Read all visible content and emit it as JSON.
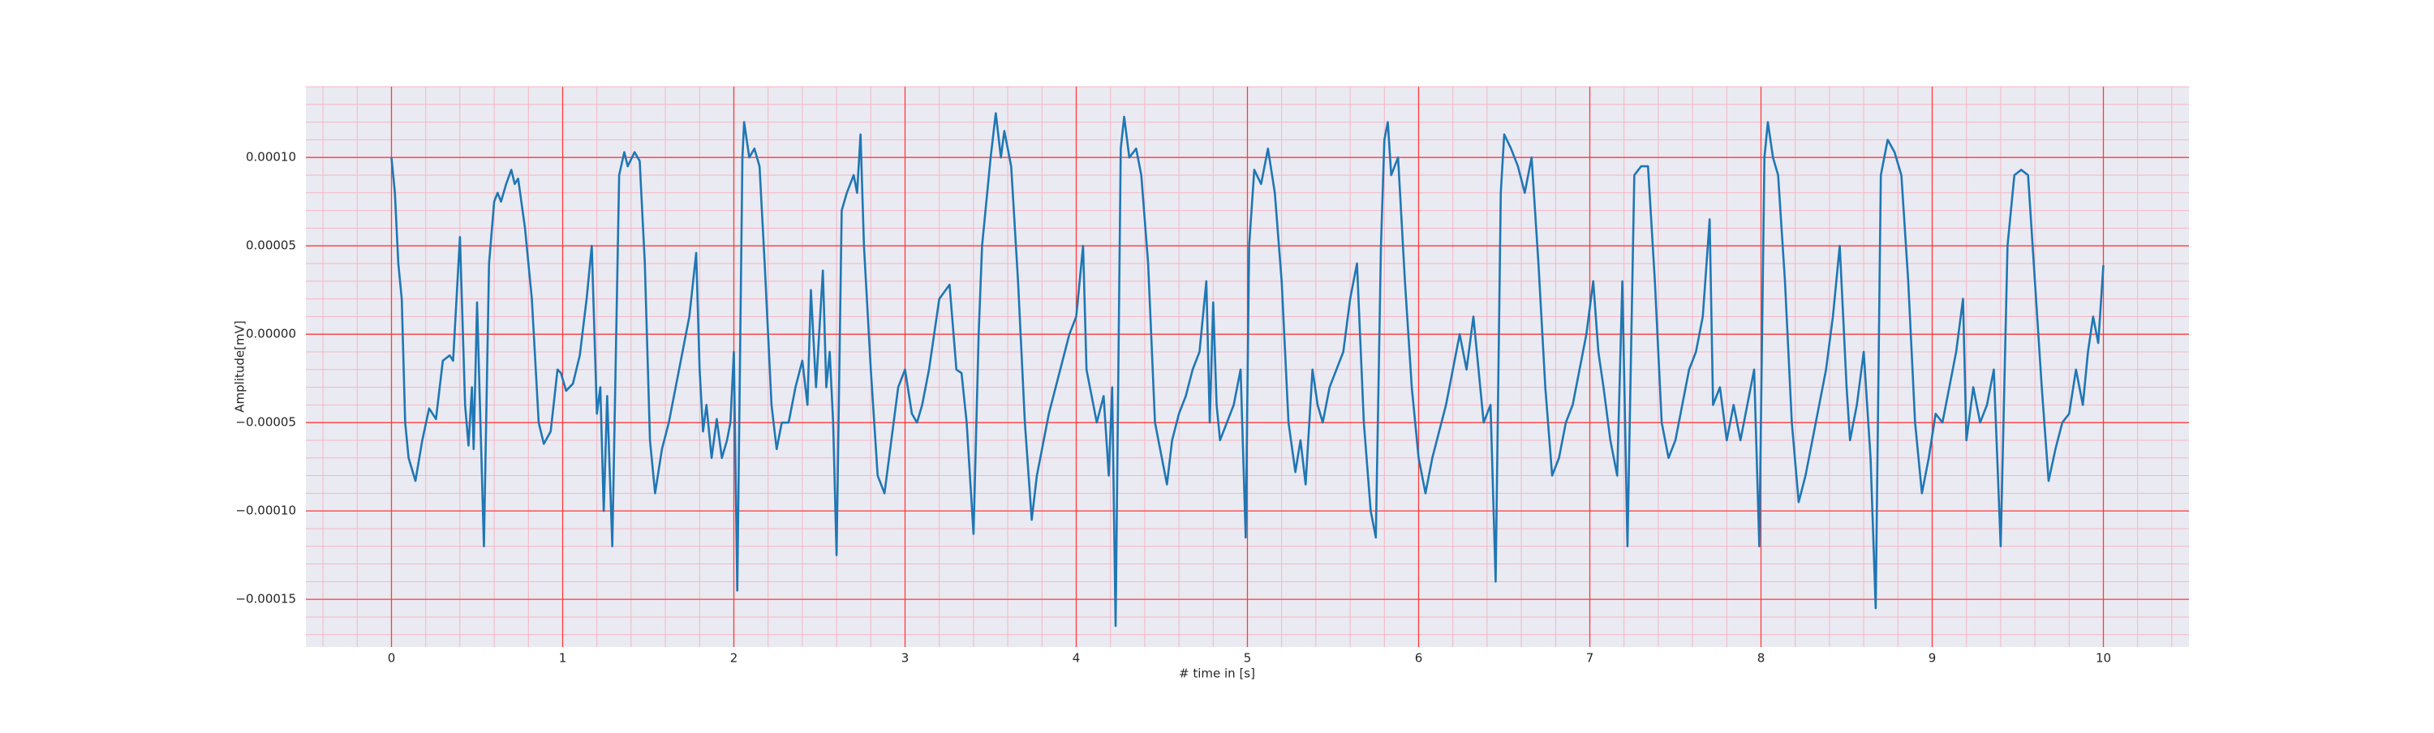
{
  "chart_data": {
    "type": "line",
    "xlabel": "# time in [s]",
    "ylabel": "Amplitude[mV]",
    "color": "#1f77b4",
    "grid": true,
    "minor_grid": true,
    "xlim": [
      -0.5,
      10.5
    ],
    "ylim": [
      -0.000177,
      0.00014
    ],
    "xticks": [
      0,
      1,
      2,
      3,
      4,
      5,
      6,
      7,
      8,
      9,
      10
    ],
    "yticks": [
      {
        "value": -0.00015,
        "label": "−0.00015"
      },
      {
        "value": -0.0001,
        "label": "−0.00010"
      },
      {
        "value": -5e-05,
        "label": "−0.00005"
      },
      {
        "value": 0,
        "label": "0.00000"
      },
      {
        "value": 5e-05,
        "label": "0.00005"
      },
      {
        "value": 0.0001,
        "label": "0.00010"
      }
    ],
    "x": [
      0,
      0.02,
      0.04,
      0.06,
      0.08,
      0.1,
      0.14,
      0.18,
      0.22,
      0.26,
      0.3,
      0.34,
      0.36,
      0.4,
      0.43,
      0.45,
      0.47,
      0.48,
      0.5,
      0.54,
      0.57,
      0.6,
      0.62,
      0.64,
      0.67,
      0.7,
      0.72,
      0.74,
      0.78,
      0.82,
      0.86,
      0.89,
      0.93,
      0.97,
      0.99,
      1.02,
      1.06,
      1.1,
      1.14,
      1.17,
      1.2,
      1.22,
      1.24,
      1.26,
      1.29,
      1.33,
      1.36,
      1.38,
      1.42,
      1.45,
      1.48,
      1.51,
      1.54,
      1.58,
      1.62,
      1.66,
      1.7,
      1.74,
      1.78,
      1.8,
      1.82,
      1.84,
      1.87,
      1.9,
      1.93,
      1.96,
      1.98,
      2.0,
      2.02,
      2.05,
      2.06,
      2.09,
      2.12,
      2.15,
      2.18,
      2.22,
      2.25,
      2.28,
      2.32,
      2.36,
      2.4,
      2.43,
      2.45,
      2.48,
      2.52,
      2.54,
      2.56,
      2.58,
      2.6,
      2.63,
      2.66,
      2.7,
      2.72,
      2.74,
      2.76,
      2.8,
      2.84,
      2.88,
      2.92,
      2.96,
      3.0,
      3.04,
      3.07,
      3.1,
      3.14,
      3.2,
      3.26,
      3.3,
      3.33,
      3.36,
      3.4,
      3.43,
      3.45,
      3.5,
      3.53,
      3.56,
      3.58,
      3.62,
      3.66,
      3.7,
      3.74,
      3.77,
      3.8,
      3.84,
      3.88,
      3.92,
      3.96,
      4.0,
      4.04,
      4.06,
      4.09,
      4.12,
      4.16,
      4.19,
      4.21,
      4.23,
      4.26,
      4.28,
      4.31,
      4.35,
      4.38,
      4.42,
      4.46,
      4.5,
      4.53,
      4.56,
      4.6,
      4.64,
      4.68,
      4.72,
      4.76,
      4.78,
      4.8,
      4.82,
      4.84,
      4.88,
      4.92,
      4.96,
      4.99,
      5.01,
      5.04,
      5.08,
      5.12,
      5.16,
      5.2,
      5.24,
      5.28,
      5.31,
      5.34,
      5.38,
      5.41,
      5.44,
      5.48,
      5.52,
      5.56,
      5.6,
      5.64,
      5.68,
      5.72,
      5.75,
      5.78,
      5.8,
      5.82,
      5.84,
      5.88,
      5.92,
      5.96,
      6.0,
      6.04,
      6.08,
      6.12,
      6.16,
      6.2,
      6.24,
      6.28,
      6.32,
      6.36,
      6.38,
      6.42,
      6.45,
      6.48,
      6.5,
      6.54,
      6.58,
      6.62,
      6.66,
      6.7,
      6.74,
      6.78,
      6.82,
      6.86,
      6.9,
      6.94,
      6.98,
      7.02,
      7.05,
      7.08,
      7.12,
      7.16,
      7.19,
      7.22,
      7.26,
      7.3,
      7.34,
      7.38,
      7.42,
      7.46,
      7.5,
      7.54,
      7.58,
      7.62,
      7.66,
      7.7,
      7.72,
      7.76,
      7.8,
      7.84,
      7.88,
      7.92,
      7.96,
      7.99,
      8.02,
      8.04,
      8.07,
      8.1,
      8.14,
      8.18,
      8.22,
      8.26,
      8.3,
      8.34,
      8.38,
      8.42,
      8.46,
      8.5,
      8.52,
      8.56,
      8.6,
      8.64,
      8.67,
      8.7,
      8.74,
      8.78,
      8.82,
      8.86,
      8.9,
      8.94,
      8.98,
      9.02,
      9.06,
      9.1,
      9.14,
      9.18,
      9.2,
      9.24,
      9.28,
      9.32,
      9.36,
      9.4,
      9.44,
      9.48,
      9.52,
      9.56,
      9.6,
      9.64,
      9.68,
      9.72,
      9.76,
      9.8,
      9.84,
      9.88,
      9.91,
      9.94,
      9.97,
      10.0
    ],
    "values": [
      0.0001,
      8e-05,
      4e-05,
      2e-05,
      -5e-05,
      -7e-05,
      -8.3e-05,
      -6e-05,
      -4.2e-05,
      -4.8e-05,
      -1.5e-05,
      -1.2e-05,
      -1.5e-05,
      5.5e-05,
      -4e-05,
      -6.3e-05,
      -3e-05,
      -6.5e-05,
      1.8e-05,
      -0.00012,
      4e-05,
      7.5e-05,
      8e-05,
      7.5e-05,
      8.5e-05,
      9.3e-05,
      8.5e-05,
      8.8e-05,
      6e-05,
      2e-05,
      -5e-05,
      -6.2e-05,
      -5.5e-05,
      -2e-05,
      -2.2e-05,
      -3.2e-05,
      -2.8e-05,
      -1.2e-05,
      2e-05,
      5e-05,
      -4.5e-05,
      -3e-05,
      -0.0001,
      -3.5e-05,
      -0.00012,
      9e-05,
      0.000103,
      9.5e-05,
      0.000103,
      9.8e-05,
      4e-05,
      -6e-05,
      -9e-05,
      -6.5e-05,
      -5e-05,
      -3e-05,
      -1e-05,
      1e-05,
      4.6e-05,
      -2e-05,
      -5.5e-05,
      -4e-05,
      -7e-05,
      -4.8e-05,
      -7e-05,
      -6e-05,
      -5e-05,
      -1e-05,
      -0.000145,
      0.0001,
      0.00012,
      0.0001,
      0.000105,
      9.5e-05,
      4e-05,
      -4e-05,
      -6.5e-05,
      -5e-05,
      -5e-05,
      -3e-05,
      -1.5e-05,
      -4e-05,
      2.5e-05,
      -3e-05,
      3.6e-05,
      -3e-05,
      -1e-05,
      -5e-05,
      -0.000125,
      7e-05,
      8e-05,
      9e-05,
      8e-05,
      0.000113,
      5e-05,
      -2e-05,
      -8e-05,
      -9e-05,
      -6e-05,
      -3e-05,
      -2e-05,
      -4.5e-05,
      -5e-05,
      -4e-05,
      -2e-05,
      2e-05,
      2.8e-05,
      -2e-05,
      -2.2e-05,
      -5e-05,
      -0.000113,
      0,
      5e-05,
      0.0001,
      0.000125,
      0.0001,
      0.000115,
      9.5e-05,
      3e-05,
      -5e-05,
      -0.000105,
      -8e-05,
      -6.5e-05,
      -4.5e-05,
      -3e-05,
      -1.5e-05,
      0,
      1e-05,
      5e-05,
      -2e-05,
      -3.5e-05,
      -5e-05,
      -3.5e-05,
      -8e-05,
      -3e-05,
      -0.000165,
      0.000105,
      0.000123,
      0.0001,
      0.000105,
      9e-05,
      4e-05,
      -5e-05,
      -7e-05,
      -8.5e-05,
      -6e-05,
      -4.5e-05,
      -3.5e-05,
      -2e-05,
      -1e-05,
      3e-05,
      -5e-05,
      1.8e-05,
      -4e-05,
      -6e-05,
      -5e-05,
      -4e-05,
      -2e-05,
      -0.000115,
      5e-05,
      9.3e-05,
      8.5e-05,
      0.000105,
      8e-05,
      3e-05,
      -5e-05,
      -7.8e-05,
      -6e-05,
      -8.5e-05,
      -2e-05,
      -4e-05,
      -5e-05,
      -3e-05,
      -2e-05,
      -1e-05,
      2e-05,
      4e-05,
      -5e-05,
      -0.0001,
      -0.000115,
      5e-05,
      0.00011,
      0.00012,
      9e-05,
      0.0001,
      3e-05,
      -3e-05,
      -7e-05,
      -9e-05,
      -7e-05,
      -5.5e-05,
      -4e-05,
      -2e-05,
      0,
      -2e-05,
      1e-05,
      -3e-05,
      -5e-05,
      -4e-05,
      -0.00014,
      8e-05,
      0.000113,
      0.000105,
      9.5e-05,
      8e-05,
      0.0001,
      4e-05,
      -3e-05,
      -8e-05,
      -7e-05,
      -5e-05,
      -4e-05,
      -2e-05,
      0,
      3e-05,
      -1e-05,
      -3e-05,
      -6e-05,
      -8e-05,
      3e-05,
      -0.00012,
      9e-05,
      9.5e-05,
      9.5e-05,
      3e-05,
      -5e-05,
      -7e-05,
      -6e-05,
      -4e-05,
      -2e-05,
      -1e-05,
      1e-05,
      6.5e-05,
      -4e-05,
      -3e-05,
      -6e-05,
      -4e-05,
      -6e-05,
      -4e-05,
      -2e-05,
      -0.00012,
      0.0001,
      0.00012,
      0.0001,
      9e-05,
      3e-05,
      -5e-05,
      -9.5e-05,
      -8e-05,
      -6e-05,
      -4e-05,
      -2e-05,
      1e-05,
      5e-05,
      -3e-05,
      -6e-05,
      -4e-05,
      -1e-05,
      -7e-05,
      -0.000155,
      9e-05,
      0.00011,
      0.000103,
      9e-05,
      3e-05,
      -5e-05,
      -9e-05,
      -7e-05,
      -4.5e-05,
      -5e-05,
      -3e-05,
      -1e-05,
      2e-05,
      -6e-05,
      -3e-05,
      -5e-05,
      -4e-05,
      -2e-05,
      -0.00012,
      5e-05,
      9e-05,
      9.3e-05,
      9e-05,
      3e-05,
      -3e-05,
      -8.3e-05,
      -6.5e-05,
      -5e-05,
      -4.5e-05,
      -2e-05,
      -4e-05,
      -1e-05,
      1e-05,
      -5e-06,
      3.9e-05
    ]
  }
}
